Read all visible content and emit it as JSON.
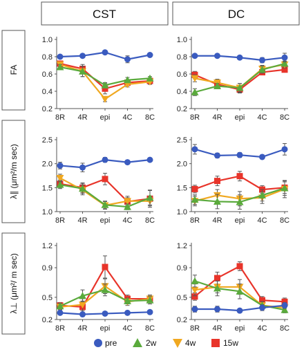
{
  "columns": [
    "CST",
    "DC"
  ],
  "rows": [
    {
      "label": "FA",
      "ylim": [
        0.2,
        1.0
      ],
      "yticks": [
        "0.2",
        "0.4",
        "0.6",
        "0.8",
        "1.0"
      ],
      "ytick_values": [
        0.2,
        0.4,
        0.6,
        0.8,
        1.0
      ]
    },
    {
      "label": "λ∥ (μm²/m sec)",
      "ylim": [
        1.0,
        2.5
      ],
      "yticks": [
        "1.0",
        "1.5",
        "2.0",
        "2.5"
      ],
      "ytick_values": [
        1.0,
        1.5,
        2.0,
        2.5
      ]
    },
    {
      "label": "λ⊥ (μm²/ m sec)",
      "ylim": [
        0.2,
        1.2
      ],
      "yticks": [
        "0.2",
        "0.5",
        "0.9",
        "1.2"
      ],
      "ytick_values": [
        0.2,
        0.5,
        0.9,
        1.2
      ]
    }
  ],
  "legend": [
    {
      "name": "pre",
      "color": "#3a5bbf",
      "marker": "circle"
    },
    {
      "name": "2w",
      "color": "#5aaa3c",
      "marker": "triangle"
    },
    {
      "name": "4w",
      "color": "#f0a820",
      "marker": "triangle-down"
    },
    {
      "name": "15w",
      "color": "#e8342a",
      "marker": "square"
    }
  ],
  "chart_data": [
    {
      "type": "line",
      "column": "CST",
      "row": "FA",
      "categories": [
        "8R",
        "4R",
        "epi",
        "4C",
        "8C"
      ],
      "ylim": [
        0.2,
        1.0
      ],
      "series": [
        {
          "name": "pre",
          "values": [
            0.8,
            0.81,
            0.85,
            0.77,
            0.82
          ],
          "err": [
            0.02,
            0.02,
            0.02,
            0.04,
            0.02
          ]
        },
        {
          "name": "2w",
          "values": [
            0.68,
            0.63,
            0.47,
            0.53,
            0.55
          ],
          "err": [
            0.03,
            0.06,
            0.03,
            0.03,
            0.02
          ]
        },
        {
          "name": "4w",
          "values": [
            0.71,
            0.63,
            0.31,
            0.48,
            0.51
          ],
          "err": [
            0.03,
            0.06,
            0.03,
            0.03,
            0.03
          ]
        },
        {
          "name": "15w",
          "values": [
            0.72,
            0.66,
            0.43,
            0.5,
            0.52
          ],
          "err": [
            0.03,
            0.05,
            0.06,
            0.03,
            0.03
          ]
        }
      ]
    },
    {
      "type": "line",
      "column": "DC",
      "row": "FA",
      "categories": [
        "8R",
        "4R",
        "epi",
        "4C",
        "8C"
      ],
      "ylim": [
        0.2,
        1.0
      ],
      "series": [
        {
          "name": "pre",
          "values": [
            0.81,
            0.81,
            0.79,
            0.76,
            0.79
          ],
          "err": [
            0.02,
            0.02,
            0.02,
            0.03,
            0.05
          ]
        },
        {
          "name": "2w",
          "values": [
            0.39,
            0.46,
            0.44,
            0.65,
            0.72
          ],
          "err": [
            0.04,
            0.03,
            0.05,
            0.04,
            0.03
          ]
        },
        {
          "name": "4w",
          "values": [
            0.55,
            0.5,
            0.44,
            0.66,
            0.71
          ],
          "err": [
            0.04,
            0.04,
            0.05,
            0.04,
            0.04
          ]
        },
        {
          "name": "15w",
          "values": [
            0.59,
            0.48,
            0.42,
            0.62,
            0.65
          ],
          "err": [
            0.04,
            0.04,
            0.04,
            0.03,
            0.03
          ]
        }
      ]
    },
    {
      "type": "line",
      "column": "CST",
      "row": "λ∥ (μm²/m sec)",
      "categories": [
        "8R",
        "4R",
        "epi",
        "4C",
        "8C"
      ],
      "ylim": [
        1.0,
        2.5
      ],
      "series": [
        {
          "name": "pre",
          "values": [
            1.96,
            1.92,
            2.08,
            2.03,
            2.08
          ],
          "err": [
            0.07,
            0.09,
            0.05,
            0.03,
            0.04
          ]
        },
        {
          "name": "2w",
          "values": [
            1.56,
            1.48,
            1.14,
            1.1,
            1.29
          ],
          "err": [
            0.08,
            0.1,
            0.08,
            0.06,
            0.15
          ]
        },
        {
          "name": "4w",
          "values": [
            1.7,
            1.45,
            1.13,
            1.22,
            1.22
          ],
          "err": [
            0.08,
            0.1,
            0.08,
            0.1,
            0.1
          ]
        },
        {
          "name": "15w",
          "values": [
            1.58,
            1.5,
            1.68,
            1.21,
            1.27
          ],
          "err": [
            0.08,
            0.1,
            0.12,
            0.08,
            0.18
          ]
        }
      ]
    },
    {
      "type": "line",
      "column": "DC",
      "row": "λ∥ (μm²/m sec)",
      "categories": [
        "8R",
        "4R",
        "epi",
        "4C",
        "8C"
      ],
      "ylim": [
        1.0,
        2.5
      ],
      "series": [
        {
          "name": "pre",
          "values": [
            2.3,
            2.17,
            2.18,
            2.14,
            2.3
          ],
          "err": [
            0.1,
            0.05,
            0.05,
            0.04,
            0.12
          ]
        },
        {
          "name": "2w",
          "values": [
            1.25,
            1.21,
            1.2,
            1.34,
            1.49
          ],
          "err": [
            0.1,
            0.15,
            0.15,
            0.12,
            0.15
          ]
        },
        {
          "name": "4w",
          "values": [
            1.22,
            1.34,
            1.27,
            1.29,
            1.47
          ],
          "err": [
            0.1,
            0.12,
            0.15,
            0.12,
            0.18
          ]
        },
        {
          "name": "15w",
          "values": [
            1.47,
            1.64,
            1.74,
            1.46,
            1.5
          ],
          "err": [
            0.08,
            0.1,
            0.1,
            0.08,
            0.12
          ]
        }
      ]
    },
    {
      "type": "line",
      "column": "CST",
      "row": "λ⊥ (μm²/ m sec)",
      "categories": [
        "8R",
        "4R",
        "epi",
        "4C",
        "8C"
      ],
      "ylim": [
        0.2,
        1.2
      ],
      "series": [
        {
          "name": "pre",
          "values": [
            0.29,
            0.27,
            0.28,
            0.29,
            0.3
          ],
          "err": [
            0.02,
            0.02,
            0.02,
            0.02,
            0.02
          ]
        },
        {
          "name": "2w",
          "values": [
            0.38,
            0.52,
            0.6,
            0.45,
            0.46
          ],
          "err": [
            0.04,
            0.08,
            0.08,
            0.04,
            0.05
          ]
        },
        {
          "name": "4w",
          "values": [
            0.37,
            0.4,
            0.65,
            0.44,
            0.48
          ],
          "err": [
            0.04,
            0.08,
            0.1,
            0.05,
            0.05
          ]
        },
        {
          "name": "15w",
          "values": [
            0.39,
            0.37,
            0.91,
            0.48,
            0.48
          ],
          "err": [
            0.04,
            0.08,
            0.15,
            0.05,
            0.05
          ]
        }
      ]
    },
    {
      "type": "line",
      "column": "DC",
      "row": "λ⊥ (μm²/ m sec)",
      "categories": [
        "8R",
        "4R",
        "epi",
        "4C",
        "8C"
      ],
      "ylim": [
        0.2,
        1.2
      ],
      "series": [
        {
          "name": "pre",
          "values": [
            0.34,
            0.34,
            0.32,
            0.36,
            0.39
          ],
          "err": [
            0.04,
            0.04,
            0.02,
            0.04,
            0.04
          ]
        },
        {
          "name": "2w",
          "values": [
            0.72,
            0.62,
            0.58,
            0.39,
            0.33
          ],
          "err": [
            0.08,
            0.1,
            0.1,
            0.05,
            0.04
          ]
        },
        {
          "name": "4w",
          "values": [
            0.6,
            0.64,
            0.64,
            0.39,
            0.36
          ],
          "err": [
            0.08,
            0.08,
            0.1,
            0.05,
            0.05
          ]
        },
        {
          "name": "15w",
          "values": [
            0.51,
            0.76,
            0.92,
            0.46,
            0.44
          ],
          "err": [
            0.05,
            0.08,
            0.06,
            0.05,
            0.05
          ]
        }
      ]
    }
  ]
}
